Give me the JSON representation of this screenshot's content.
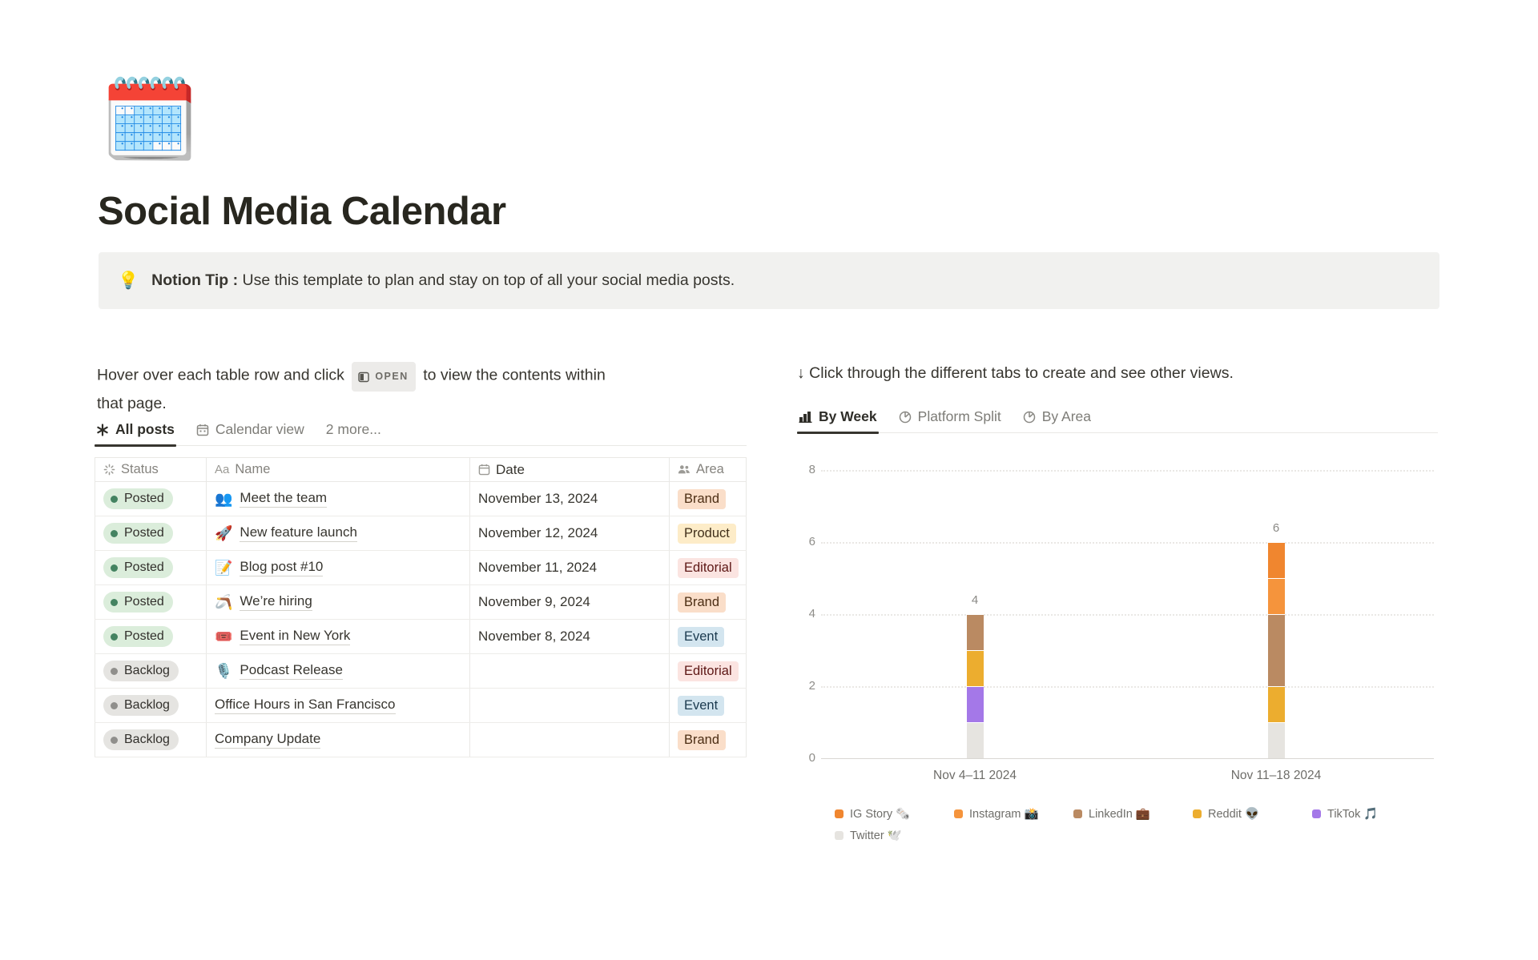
{
  "page": {
    "icon": "🗓️",
    "title": "Social Media Calendar",
    "callout": {
      "emoji": "💡",
      "bold": "Notion Tip :",
      "text": " Use this template to plan and stay on top of all your social media posts."
    }
  },
  "left": {
    "instruction_before": "Hover over each table row and click",
    "open_badge": "OPEN",
    "instruction_after": "to view the contents within that page.",
    "tabs": [
      {
        "label": "All posts",
        "active": true
      },
      {
        "label": "Calendar view",
        "active": false
      },
      {
        "label": "2 more...",
        "active": false
      }
    ],
    "table": {
      "columns": [
        {
          "label": "Status"
        },
        {
          "label": "Name"
        },
        {
          "label": "Date"
        },
        {
          "label": "Area"
        }
      ],
      "rows": [
        {
          "status": "Posted",
          "emoji": "👥",
          "name": "Meet the team",
          "date": "November 13, 2024",
          "area": "Brand"
        },
        {
          "status": "Posted",
          "emoji": "🚀",
          "name": "New feature launch",
          "date": "November 12, 2024",
          "area": "Product"
        },
        {
          "status": "Posted",
          "emoji": "📝",
          "name": "Blog post #10",
          "date": "November 11, 2024",
          "area": "Editorial"
        },
        {
          "status": "Posted",
          "emoji": "🪃",
          "name": "We’re hiring",
          "date": "November 9, 2024",
          "area": "Brand"
        },
        {
          "status": "Posted",
          "emoji": "🎟️",
          "name": "Event in New York",
          "date": "November 8, 2024",
          "area": "Event"
        },
        {
          "status": "Backlog",
          "emoji": "🎙️",
          "name": "Podcast Release",
          "date": "",
          "area": "Editorial"
        },
        {
          "status": "Backlog",
          "emoji": "",
          "name": "Office Hours in San Francisco",
          "date": "",
          "area": "Event"
        },
        {
          "status": "Backlog",
          "emoji": "",
          "name": "Company Update",
          "date": "",
          "area": "Brand"
        }
      ],
      "status_colors": {
        "Posted": {
          "bg": "#DBEDDB",
          "dot": "#448361"
        },
        "Backlog": {
          "bg": "#E5E4E1",
          "dot": "#908F8C"
        }
      },
      "area_colors": {
        "Brand": {
          "bg": "#FADEC9",
          "text": "#4C2E14"
        },
        "Product": {
          "bg": "#FDECC8",
          "text": "#41301B"
        },
        "Editorial": {
          "bg": "#FBE4E1",
          "text": "#5D1715"
        },
        "Event": {
          "bg": "#D3E5EF",
          "text": "#1B3A4F"
        }
      }
    }
  },
  "right": {
    "instruction": "↓ Click through the different tabs to create and see other views.",
    "tabs": [
      {
        "label": "By Week",
        "active": true
      },
      {
        "label": "Platform Split",
        "active": false
      },
      {
        "label": "By Area",
        "active": false
      }
    ]
  },
  "chart_data": {
    "type": "bar",
    "stacked": true,
    "title": "",
    "xlabel": "",
    "ylabel": "",
    "categories": [
      "Nov 4–11 2024",
      "Nov 11–18 2024"
    ],
    "series": [
      {
        "name": "IG Story",
        "emoji": "🗞️",
        "color": "#F0862F",
        "values": [
          0,
          1
        ]
      },
      {
        "name": "Instagram",
        "emoji": "📸",
        "color": "#F5943C",
        "values": [
          0,
          1
        ]
      },
      {
        "name": "LinkedIn",
        "emoji": "💼",
        "color": "#BA8A62",
        "values": [
          1,
          2
        ]
      },
      {
        "name": "Reddit",
        "emoji": "👽",
        "color": "#ECAD2F",
        "values": [
          1,
          1
        ]
      },
      {
        "name": "TikTok",
        "emoji": "🎵",
        "color": "#A478E8",
        "values": [
          1,
          0
        ]
      },
      {
        "name": "Twitter",
        "emoji": "🕊️",
        "color": "#E6E4E0",
        "values": [
          1,
          1
        ]
      }
    ],
    "totals": [
      4,
      6
    ],
    "yticks": [
      0,
      2,
      4,
      6,
      8
    ],
    "ylim": [
      0,
      8
    ],
    "grid": "dotted-horizontal",
    "legend_position": "bottom"
  }
}
